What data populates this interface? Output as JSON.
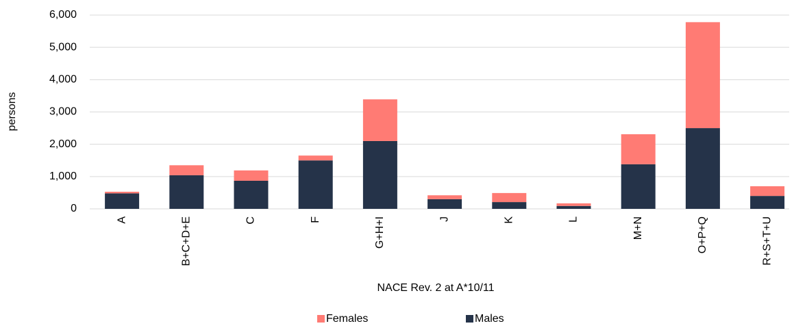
{
  "chart_data": {
    "type": "stacked_bar",
    "x_label": "NACE Rev. 2 at A*10/11",
    "y_label": "persons",
    "categories": [
      "A",
      "B+C+D+E",
      "C",
      "F",
      "G+H+I",
      "J",
      "K",
      "L",
      "M+N",
      "O+P+Q",
      "R+S+T+U"
    ],
    "series": [
      {
        "name": "Females",
        "color": "#ff7b74",
        "values": [
          50,
          310,
          320,
          150,
          1290,
          120,
          280,
          80,
          930,
          3280,
          300
        ]
      },
      {
        "name": "Males",
        "color": "#253349",
        "values": [
          480,
          1040,
          870,
          1500,
          2100,
          300,
          210,
          90,
          1380,
          2500,
          400
        ]
      }
    ],
    "stack_order": [
      "Males",
      "Females"
    ],
    "ylim": [
      0,
      6000
    ],
    "yticks": [
      0,
      {
        "value": 1000,
        "label": "1,000"
      },
      {
        "value": 2000,
        "label": "2,000"
      },
      {
        "value": 3000,
        "label": "3,000"
      },
      {
        "value": 4000,
        "label": "4,000"
      },
      {
        "value": 5000,
        "label": "5,000"
      },
      {
        "value": 6000,
        "label": "6,000"
      }
    ],
    "grid": true,
    "legend": "bottom"
  }
}
